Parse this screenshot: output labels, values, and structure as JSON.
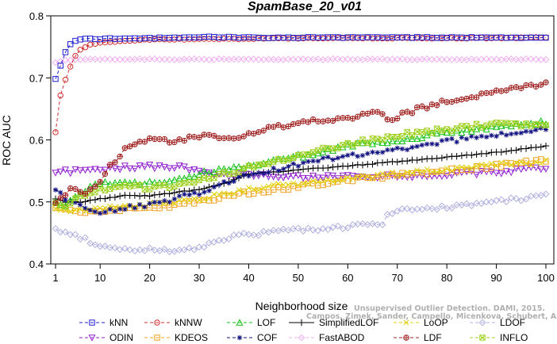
{
  "chart_data": {
    "type": "line",
    "title": "SpamBase_20_v01",
    "xlabel": "Neighborhood size",
    "ylabel": "ROC AUC",
    "xlim": [
      1,
      100
    ],
    "ylim": [
      0.4,
      0.8
    ],
    "xticks": [
      1,
      10,
      20,
      30,
      40,
      50,
      60,
      70,
      80,
      90,
      100
    ],
    "yticks": [
      0.4,
      0.5,
      0.6,
      0.7,
      0.8
    ],
    "grid": false,
    "legend_position": "bottom",
    "watermark": [
      "Unsupervised Outlier Detection. DAMI, 2015.",
      "Campos, Zimek, Sander, Campello, Micenkova, Schubert, Assent, Houle"
    ],
    "series": [
      {
        "name": "kNN",
        "color": "#1f1fd0",
        "marker": "square",
        "dash": "4,3",
        "points": [
          [
            1,
            0.698
          ],
          [
            2,
            0.72
          ],
          [
            3,
            0.742
          ],
          [
            4,
            0.755
          ],
          [
            5,
            0.76
          ],
          [
            7,
            0.763
          ],
          [
            10,
            0.763
          ],
          [
            20,
            0.764
          ],
          [
            33,
            0.766
          ],
          [
            40,
            0.765
          ],
          [
            60,
            0.765
          ],
          [
            80,
            0.765
          ],
          [
            100,
            0.765
          ]
        ]
      },
      {
        "name": "kNNW",
        "color": "#d03030",
        "marker": "circle",
        "dash": "4,3",
        "points": [
          [
            1,
            0.613
          ],
          [
            2,
            0.671
          ],
          [
            3,
            0.697
          ],
          [
            4,
            0.718
          ],
          [
            5,
            0.735
          ],
          [
            6,
            0.746
          ],
          [
            8,
            0.753
          ],
          [
            10,
            0.756
          ],
          [
            15,
            0.76
          ],
          [
            20,
            0.762
          ],
          [
            40,
            0.763
          ],
          [
            60,
            0.764
          ],
          [
            80,
            0.764
          ],
          [
            100,
            0.765
          ]
        ]
      },
      {
        "name": "LOF",
        "color": "#10c010",
        "marker": "triangle-up",
        "dash": "4,3",
        "points": [
          [
            1,
            0.5
          ],
          [
            3,
            0.495
          ],
          [
            6,
            0.515
          ],
          [
            10,
            0.53
          ],
          [
            15,
            0.532
          ],
          [
            20,
            0.53
          ],
          [
            25,
            0.535
          ],
          [
            30,
            0.545
          ],
          [
            35,
            0.552
          ],
          [
            40,
            0.558
          ],
          [
            50,
            0.573
          ],
          [
            60,
            0.59
          ],
          [
            70,
            0.6
          ],
          [
            80,
            0.612
          ],
          [
            90,
            0.62
          ],
          [
            100,
            0.628
          ]
        ]
      },
      {
        "name": "SimplifiedLOF",
        "color": "#000000",
        "marker": "plus",
        "dash": "none",
        "points": [
          [
            1,
            0.505
          ],
          [
            3,
            0.5
          ],
          [
            6,
            0.5
          ],
          [
            10,
            0.505
          ],
          [
            15,
            0.51
          ],
          [
            20,
            0.51
          ],
          [
            25,
            0.515
          ],
          [
            30,
            0.52
          ],
          [
            35,
            0.53
          ],
          [
            40,
            0.545
          ],
          [
            45,
            0.548
          ],
          [
            50,
            0.552
          ],
          [
            60,
            0.558
          ],
          [
            70,
            0.565
          ],
          [
            80,
            0.572
          ],
          [
            90,
            0.58
          ],
          [
            100,
            0.59
          ]
        ]
      },
      {
        "name": "LoOP",
        "color": "#e0d000",
        "marker": "x",
        "dash": "4,3",
        "points": [
          [
            1,
            0.49
          ],
          [
            5,
            0.485
          ],
          [
            10,
            0.49
          ],
          [
            15,
            0.492
          ],
          [
            20,
            0.495
          ],
          [
            30,
            0.505
          ],
          [
            40,
            0.52
          ],
          [
            50,
            0.53
          ],
          [
            60,
            0.537
          ],
          [
            70,
            0.545
          ],
          [
            80,
            0.552
          ],
          [
            90,
            0.56
          ],
          [
            100,
            0.565
          ]
        ]
      },
      {
        "name": "LDOF",
        "color": "#b0b0e0",
        "marker": "diamond",
        "dash": "4,3",
        "points": [
          [
            1,
            0.455
          ],
          [
            3,
            0.453
          ],
          [
            5,
            0.447
          ],
          [
            8,
            0.435
          ],
          [
            10,
            0.43
          ],
          [
            15,
            0.425
          ],
          [
            20,
            0.423
          ],
          [
            25,
            0.42
          ],
          [
            30,
            0.425
          ],
          [
            35,
            0.44
          ],
          [
            40,
            0.448
          ],
          [
            50,
            0.455
          ],
          [
            60,
            0.46
          ],
          [
            67,
            0.465
          ],
          [
            68,
            0.48
          ],
          [
            70,
            0.487
          ],
          [
            80,
            0.492
          ],
          [
            90,
            0.5
          ],
          [
            100,
            0.51
          ]
        ]
      },
      {
        "name": "ODIN",
        "color": "#9020d0",
        "marker": "triangle-down",
        "dash": "4,3",
        "points": [
          [
            1,
            0.548
          ],
          [
            5,
            0.55
          ],
          [
            10,
            0.555
          ],
          [
            15,
            0.555
          ],
          [
            20,
            0.557
          ],
          [
            25,
            0.557
          ],
          [
            30,
            0.55
          ],
          [
            35,
            0.545
          ],
          [
            40,
            0.542
          ],
          [
            50,
            0.54
          ],
          [
            60,
            0.54
          ],
          [
            70,
            0.542
          ],
          [
            80,
            0.545
          ],
          [
            90,
            0.548
          ],
          [
            100,
            0.555
          ]
        ]
      },
      {
        "name": "KDEOS",
        "color": "#f0a020",
        "marker": "square",
        "dash": "4,3",
        "points": [
          [
            1,
            0.49
          ],
          [
            5,
            0.483
          ],
          [
            10,
            0.485
          ],
          [
            15,
            0.488
          ],
          [
            20,
            0.49
          ],
          [
            25,
            0.495
          ],
          [
            30,
            0.5
          ],
          [
            40,
            0.515
          ],
          [
            50,
            0.525
          ],
          [
            60,
            0.535
          ],
          [
            70,
            0.543
          ],
          [
            80,
            0.55
          ],
          [
            90,
            0.558
          ],
          [
            100,
            0.567
          ]
        ]
      },
      {
        "name": "COF",
        "color": "#101080",
        "marker": "star",
        "dash": "4,3",
        "points": [
          [
            1,
            0.52
          ],
          [
            3,
            0.505
          ],
          [
            5,
            0.497
          ],
          [
            8,
            0.485
          ],
          [
            10,
            0.485
          ],
          [
            15,
            0.49
          ],
          [
            20,
            0.495
          ],
          [
            25,
            0.505
          ],
          [
            30,
            0.515
          ],
          [
            35,
            0.53
          ],
          [
            40,
            0.545
          ],
          [
            45,
            0.552
          ],
          [
            50,
            0.56
          ],
          [
            55,
            0.568
          ],
          [
            60,
            0.573
          ],
          [
            70,
            0.585
          ],
          [
            80,
            0.598
          ],
          [
            90,
            0.608
          ],
          [
            100,
            0.618
          ]
        ]
      },
      {
        "name": "FastABOD",
        "color": "#f0b0f0",
        "marker": "diamond",
        "dash": "4,3",
        "points": [
          [
            1,
            0.725
          ],
          [
            3,
            0.728
          ],
          [
            5,
            0.73
          ],
          [
            10,
            0.73
          ],
          [
            20,
            0.73
          ],
          [
            40,
            0.73
          ],
          [
            60,
            0.73
          ],
          [
            80,
            0.73
          ],
          [
            100,
            0.73
          ]
        ]
      },
      {
        "name": "LDF",
        "color": "#a02020",
        "marker": "circle-plus",
        "dash": "4,3",
        "points": [
          [
            1,
            0.5
          ],
          [
            4,
            0.52
          ],
          [
            7,
            0.515
          ],
          [
            10,
            0.535
          ],
          [
            12,
            0.558
          ],
          [
            15,
            0.585
          ],
          [
            20,
            0.602
          ],
          [
            25,
            0.598
          ],
          [
            30,
            0.605
          ],
          [
            33,
            0.608
          ],
          [
            35,
            0.602
          ],
          [
            37,
            0.6
          ],
          [
            40,
            0.608
          ],
          [
            45,
            0.62
          ],
          [
            50,
            0.628
          ],
          [
            55,
            0.632
          ],
          [
            60,
            0.636
          ],
          [
            66,
            0.645
          ],
          [
            68,
            0.632
          ],
          [
            70,
            0.638
          ],
          [
            75,
            0.652
          ],
          [
            80,
            0.662
          ],
          [
            85,
            0.67
          ],
          [
            90,
            0.678
          ],
          [
            95,
            0.685
          ],
          [
            100,
            0.69
          ]
        ]
      },
      {
        "name": "INFLO",
        "color": "#a0d020",
        "marker": "square-x",
        "dash": "4,3",
        "points": [
          [
            1,
            0.5
          ],
          [
            3,
            0.49
          ],
          [
            5,
            0.505
          ],
          [
            8,
            0.515
          ],
          [
            10,
            0.52
          ],
          [
            15,
            0.525
          ],
          [
            20,
            0.523
          ],
          [
            25,
            0.525
          ],
          [
            30,
            0.535
          ],
          [
            35,
            0.545
          ],
          [
            40,
            0.555
          ],
          [
            45,
            0.565
          ],
          [
            50,
            0.575
          ],
          [
            55,
            0.585
          ],
          [
            60,
            0.593
          ],
          [
            65,
            0.6
          ],
          [
            70,
            0.608
          ],
          [
            75,
            0.612
          ],
          [
            80,
            0.617
          ],
          [
            85,
            0.622
          ],
          [
            90,
            0.625
          ],
          [
            95,
            0.625
          ],
          [
            100,
            0.625
          ]
        ]
      }
    ]
  }
}
